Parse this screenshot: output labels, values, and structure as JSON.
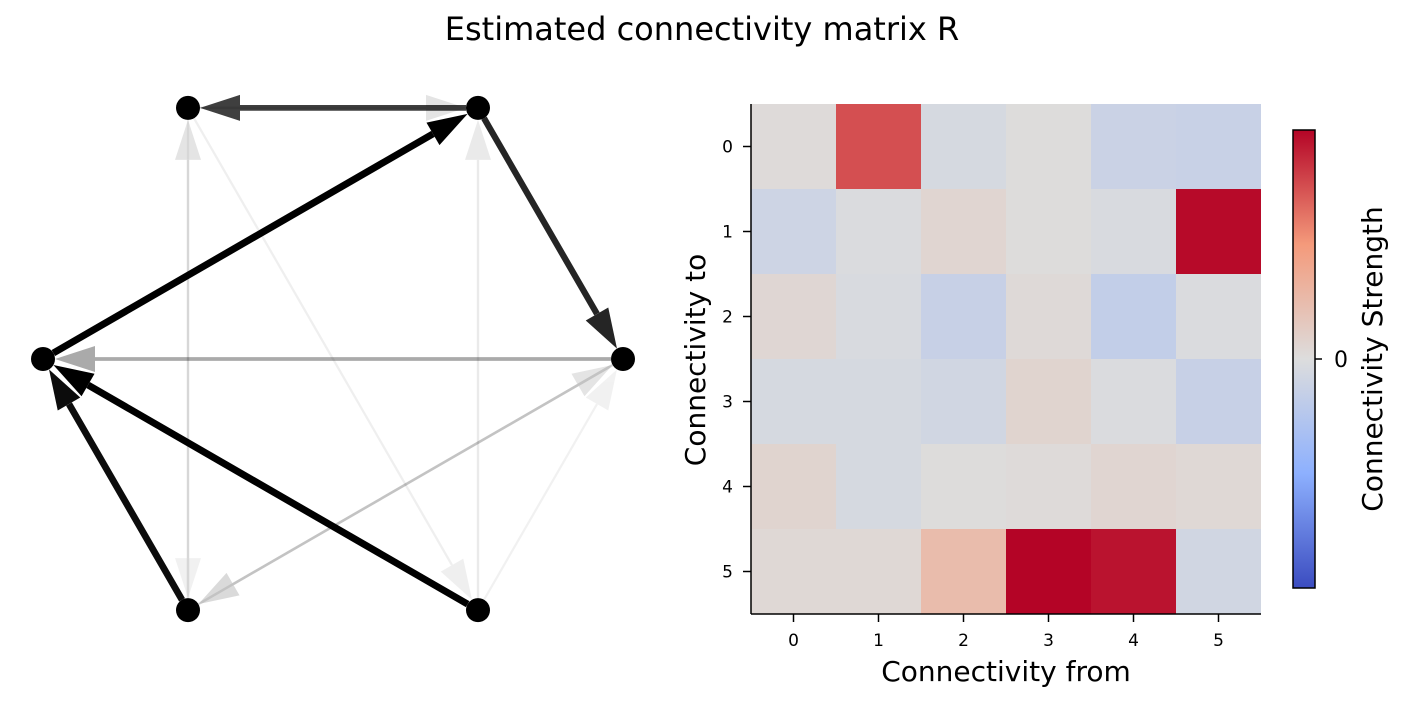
{
  "title": "Estimated connectivity matrix R",
  "chart_data": [
    {
      "type": "network",
      "nodes": [
        0,
        1,
        2,
        3,
        4,
        5
      ],
      "edges": [
        {
          "from": 5,
          "to": 1,
          "strength": 1.0
        },
        {
          "from": 1,
          "to": 2,
          "strength": 0.85
        },
        {
          "from": 3,
          "to": 5,
          "strength": 1.0
        },
        {
          "from": 4,
          "to": 5,
          "strength": 0.95
        },
        {
          "from": 2,
          "to": 5,
          "strength": 0.33
        },
        {
          "from": 1,
          "to": 0,
          "strength": 0.75
        },
        {
          "from": 0,
          "to": 1,
          "strength": 0.1
        },
        {
          "from": 3,
          "to": 2,
          "strength": 0.05
        },
        {
          "from": 4,
          "to": 0,
          "strength": 0.1
        },
        {
          "from": 3,
          "to": 1,
          "strength": 0.08
        },
        {
          "from": 2,
          "to": 4,
          "strength": 0.14
        },
        {
          "from": 4,
          "to": 2,
          "strength": 0.1
        },
        {
          "from": 0,
          "to": 4,
          "strength": 0.05
        },
        {
          "from": 0,
          "to": 3,
          "strength": 0.06
        }
      ]
    },
    {
      "type": "heatmap",
      "xlabel": "Connectivity from",
      "ylabel": "Connectivity to",
      "x_ticks": [
        "0",
        "1",
        "2",
        "3",
        "4",
        "5"
      ],
      "y_ticks": [
        "0",
        "1",
        "2",
        "3",
        "4",
        "5"
      ],
      "colormap": "coolwarm",
      "values": [
        [
          0.02,
          0.75,
          -0.05,
          0.01,
          -0.12,
          -0.13
        ],
        [
          -0.1,
          -0.02,
          0.06,
          0.01,
          -0.03,
          0.98
        ],
        [
          0.05,
          -0.03,
          -0.14,
          0.03,
          -0.17,
          -0.02
        ],
        [
          -0.05,
          -0.05,
          -0.08,
          0.07,
          -0.02,
          -0.14
        ],
        [
          0.07,
          -0.05,
          0.01,
          0.02,
          0.06,
          0.04
        ],
        [
          0.04,
          0.04,
          0.25,
          1.0,
          0.95,
          -0.08
        ]
      ],
      "colorbar": {
        "label": "Connectivity Strength",
        "ticks": [
          "0"
        ]
      }
    }
  ]
}
